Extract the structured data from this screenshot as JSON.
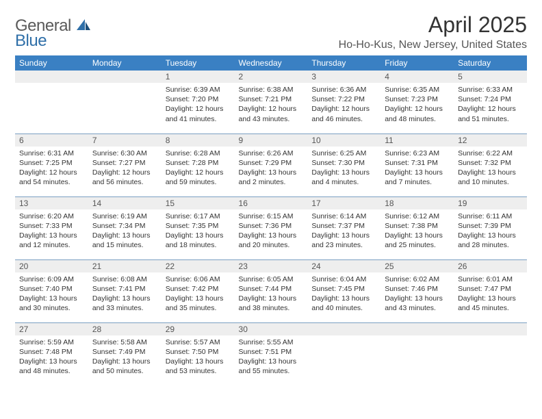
{
  "logo": {
    "general": "General",
    "blue": "Blue"
  },
  "title": "April 2025",
  "location": "Ho-Ho-Kus, New Jersey, United States",
  "colors": {
    "header_bg": "#3a80c3",
    "header_text": "#ffffff",
    "daynum_bg": "#eeeeee",
    "text": "#333333",
    "rule": "#7a9fc2",
    "logo_blue": "#2f6fa8",
    "logo_gray": "#5a5a5a"
  },
  "columns": [
    "Sunday",
    "Monday",
    "Tuesday",
    "Wednesday",
    "Thursday",
    "Friday",
    "Saturday"
  ],
  "weeks": [
    [
      null,
      null,
      {
        "n": "1",
        "sunrise": "6:39 AM",
        "sunset": "7:20 PM",
        "daylight": "12 hours and 41 minutes."
      },
      {
        "n": "2",
        "sunrise": "6:38 AM",
        "sunset": "7:21 PM",
        "daylight": "12 hours and 43 minutes."
      },
      {
        "n": "3",
        "sunrise": "6:36 AM",
        "sunset": "7:22 PM",
        "daylight": "12 hours and 46 minutes."
      },
      {
        "n": "4",
        "sunrise": "6:35 AM",
        "sunset": "7:23 PM",
        "daylight": "12 hours and 48 minutes."
      },
      {
        "n": "5",
        "sunrise": "6:33 AM",
        "sunset": "7:24 PM",
        "daylight": "12 hours and 51 minutes."
      }
    ],
    [
      {
        "n": "6",
        "sunrise": "6:31 AM",
        "sunset": "7:25 PM",
        "daylight": "12 hours and 54 minutes."
      },
      {
        "n": "7",
        "sunrise": "6:30 AM",
        "sunset": "7:27 PM",
        "daylight": "12 hours and 56 minutes."
      },
      {
        "n": "8",
        "sunrise": "6:28 AM",
        "sunset": "7:28 PM",
        "daylight": "12 hours and 59 minutes."
      },
      {
        "n": "9",
        "sunrise": "6:26 AM",
        "sunset": "7:29 PM",
        "daylight": "13 hours and 2 minutes."
      },
      {
        "n": "10",
        "sunrise": "6:25 AM",
        "sunset": "7:30 PM",
        "daylight": "13 hours and 4 minutes."
      },
      {
        "n": "11",
        "sunrise": "6:23 AM",
        "sunset": "7:31 PM",
        "daylight": "13 hours and 7 minutes."
      },
      {
        "n": "12",
        "sunrise": "6:22 AM",
        "sunset": "7:32 PM",
        "daylight": "13 hours and 10 minutes."
      }
    ],
    [
      {
        "n": "13",
        "sunrise": "6:20 AM",
        "sunset": "7:33 PM",
        "daylight": "13 hours and 12 minutes."
      },
      {
        "n": "14",
        "sunrise": "6:19 AM",
        "sunset": "7:34 PM",
        "daylight": "13 hours and 15 minutes."
      },
      {
        "n": "15",
        "sunrise": "6:17 AM",
        "sunset": "7:35 PM",
        "daylight": "13 hours and 18 minutes."
      },
      {
        "n": "16",
        "sunrise": "6:15 AM",
        "sunset": "7:36 PM",
        "daylight": "13 hours and 20 minutes."
      },
      {
        "n": "17",
        "sunrise": "6:14 AM",
        "sunset": "7:37 PM",
        "daylight": "13 hours and 23 minutes."
      },
      {
        "n": "18",
        "sunrise": "6:12 AM",
        "sunset": "7:38 PM",
        "daylight": "13 hours and 25 minutes."
      },
      {
        "n": "19",
        "sunrise": "6:11 AM",
        "sunset": "7:39 PM",
        "daylight": "13 hours and 28 minutes."
      }
    ],
    [
      {
        "n": "20",
        "sunrise": "6:09 AM",
        "sunset": "7:40 PM",
        "daylight": "13 hours and 30 minutes."
      },
      {
        "n": "21",
        "sunrise": "6:08 AM",
        "sunset": "7:41 PM",
        "daylight": "13 hours and 33 minutes."
      },
      {
        "n": "22",
        "sunrise": "6:06 AM",
        "sunset": "7:42 PM",
        "daylight": "13 hours and 35 minutes."
      },
      {
        "n": "23",
        "sunrise": "6:05 AM",
        "sunset": "7:44 PM",
        "daylight": "13 hours and 38 minutes."
      },
      {
        "n": "24",
        "sunrise": "6:04 AM",
        "sunset": "7:45 PM",
        "daylight": "13 hours and 40 minutes."
      },
      {
        "n": "25",
        "sunrise": "6:02 AM",
        "sunset": "7:46 PM",
        "daylight": "13 hours and 43 minutes."
      },
      {
        "n": "26",
        "sunrise": "6:01 AM",
        "sunset": "7:47 PM",
        "daylight": "13 hours and 45 minutes."
      }
    ],
    [
      {
        "n": "27",
        "sunrise": "5:59 AM",
        "sunset": "7:48 PM",
        "daylight": "13 hours and 48 minutes."
      },
      {
        "n": "28",
        "sunrise": "5:58 AM",
        "sunset": "7:49 PM",
        "daylight": "13 hours and 50 minutes."
      },
      {
        "n": "29",
        "sunrise": "5:57 AM",
        "sunset": "7:50 PM",
        "daylight": "13 hours and 53 minutes."
      },
      {
        "n": "30",
        "sunrise": "5:55 AM",
        "sunset": "7:51 PM",
        "daylight": "13 hours and 55 minutes."
      },
      null,
      null,
      null
    ]
  ],
  "labels": {
    "sunrise": "Sunrise:",
    "sunset": "Sunset:",
    "daylight": "Daylight:"
  }
}
